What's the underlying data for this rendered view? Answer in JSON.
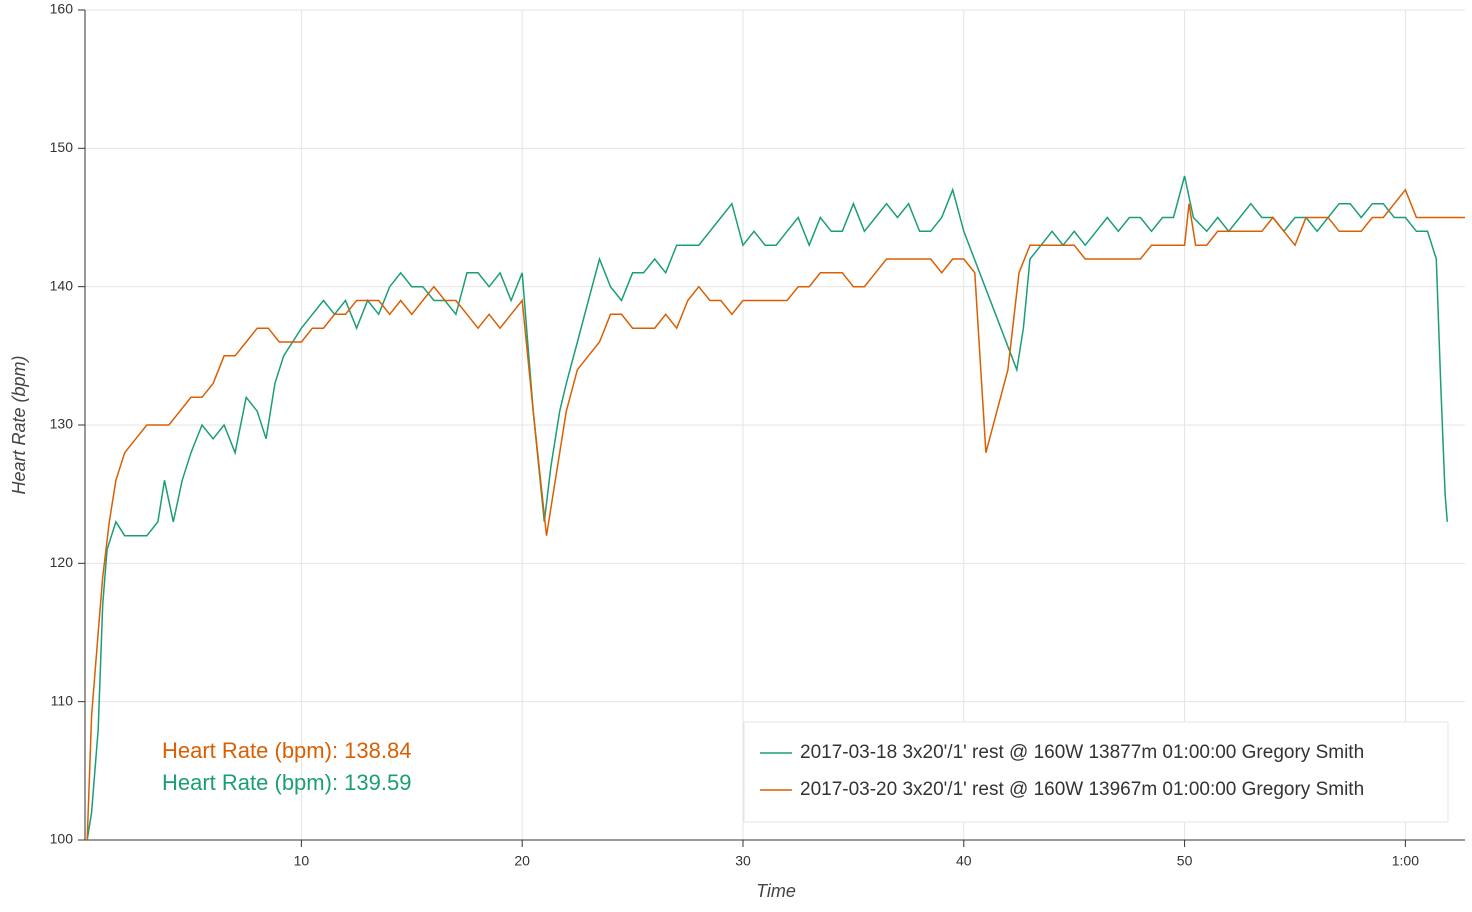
{
  "chart_data": {
    "type": "line",
    "xlabel": "Time",
    "ylabel": "Heart Rate (bpm)",
    "xlim": [
      0.2,
      62.7
    ],
    "xticks": [
      10,
      20,
      30,
      40,
      50,
      {
        "value": 60,
        "label": "1:00"
      }
    ],
    "ylim": [
      100,
      160
    ],
    "yticks": [
      100,
      110,
      120,
      130,
      140,
      150,
      160
    ],
    "grid": true,
    "legend": "bottom-right",
    "annotations": [
      {
        "text": "Heart Rate (bpm): 138.84",
        "color": "#d95f02"
      },
      {
        "text": "Heart Rate (bpm): 139.59",
        "color": "#1b9e77"
      }
    ],
    "series": [
      {
        "name": "2017-03-18 3x20'/1' rest @ 160W 13877m 01:00:00 Gregory Smith",
        "color": "#1b9e77",
        "x": [
          0.3,
          0.5,
          0.8,
          1.0,
          1.2,
          1.6,
          2.0,
          2.5,
          3.0,
          3.5,
          3.8,
          4.2,
          4.6,
          5.0,
          5.5,
          6.0,
          6.5,
          7.0,
          7.5,
          8.0,
          8.4,
          8.8,
          9.2,
          9.6,
          10.0,
          10.5,
          11.0,
          11.5,
          12.0,
          12.5,
          13.0,
          13.5,
          14.0,
          14.5,
          15.0,
          15.5,
          16.0,
          16.5,
          17.0,
          17.5,
          18.0,
          18.5,
          19.0,
          19.5,
          20.0,
          20.5,
          21.0,
          21.3,
          21.7,
          22.0,
          22.5,
          23.0,
          23.5,
          24.0,
          24.5,
          25.0,
          25.5,
          26.0,
          26.5,
          27.0,
          27.5,
          28.0,
          28.5,
          29.0,
          29.5,
          30.0,
          30.5,
          31.0,
          31.5,
          32.0,
          32.5,
          33.0,
          33.5,
          34.0,
          34.5,
          35.0,
          35.5,
          36.0,
          36.5,
          37.0,
          37.5,
          38.0,
          38.5,
          39.0,
          39.5,
          40.0,
          42.4,
          42.7,
          43.0,
          43.5,
          44.0,
          44.5,
          45.0,
          45.5,
          46.0,
          46.5,
          47.0,
          47.5,
          48.0,
          48.5,
          49.0,
          49.5,
          50.0,
          50.4,
          51.0,
          51.5,
          52.0,
          52.5,
          53.0,
          53.5,
          54.0,
          54.5,
          55.0,
          55.5,
          56.0,
          56.5,
          57.0,
          57.5,
          58.0,
          58.5,
          59.0,
          59.5,
          60.0,
          60.5,
          61.0,
          61.4,
          61.6,
          61.8,
          61.9
        ],
        "values": [
          100,
          102,
          108,
          117,
          121,
          123,
          122,
          122,
          122,
          123,
          126,
          123,
          126,
          128,
          130,
          129,
          130,
          128,
          132,
          131,
          129,
          133,
          135,
          136,
          137,
          138,
          139,
          138,
          139,
          137,
          139,
          138,
          140,
          141,
          140,
          140,
          139,
          139,
          138,
          141,
          141,
          140,
          141,
          139,
          141,
          131,
          123,
          127,
          131,
          133,
          136,
          139,
          142,
          140,
          139,
          141,
          141,
          142,
          141,
          143,
          143,
          143,
          144,
          145,
          146,
          143,
          144,
          143,
          143,
          144,
          145,
          143,
          145,
          144,
          144,
          146,
          144,
          145,
          146,
          145,
          146,
          144,
          144,
          145,
          147,
          144,
          134,
          137,
          142,
          143,
          144,
          143,
          144,
          143,
          144,
          145,
          144,
          145,
          145,
          144,
          145,
          145,
          148,
          145,
          144,
          145,
          144,
          145,
          146,
          145,
          145,
          144,
          145,
          145,
          144,
          145,
          146,
          146,
          145,
          146,
          146,
          145,
          145,
          144,
          144,
          142,
          133,
          125,
          123
        ]
      },
      {
        "name": "2017-03-20 3x20'/1' rest @ 160W 13967m 01:00:00 Gregory Smith",
        "color": "#d95f02",
        "x": [
          0.3,
          0.5,
          0.8,
          1.0,
          1.3,
          1.6,
          2.0,
          2.5,
          3.0,
          3.5,
          4.0,
          4.5,
          5.0,
          5.5,
          6.0,
          6.5,
          7.0,
          7.5,
          8.0,
          8.5,
          9.0,
          9.5,
          10.0,
          10.5,
          11.0,
          11.5,
          12.0,
          12.5,
          13.0,
          13.5,
          14.0,
          14.5,
          15.0,
          15.5,
          16.0,
          16.5,
          17.0,
          17.5,
          18.0,
          18.5,
          19.0,
          19.5,
          20.0,
          20.5,
          21.1,
          21.5,
          22.0,
          22.5,
          23.0,
          23.5,
          24.0,
          24.5,
          25.0,
          25.5,
          26.0,
          26.5,
          27.0,
          27.5,
          28.0,
          28.5,
          29.0,
          29.5,
          30.0,
          31.0,
          32.0,
          32.5,
          33.0,
          33.5,
          34.0,
          34.5,
          35.0,
          35.5,
          36.0,
          36.5,
          37.0,
          37.5,
          38.0,
          38.5,
          39.0,
          39.5,
          40.0,
          40.5,
          41.0,
          42.0,
          42.5,
          43.0,
          43.5,
          44.0,
          44.5,
          45.0,
          45.5,
          46.0,
          47.0,
          48.0,
          48.5,
          49.0,
          49.5,
          50.0,
          50.2,
          50.5,
          51.0,
          51.5,
          52.0,
          52.5,
          53.0,
          53.5,
          54.0,
          54.5,
          55.0,
          55.5,
          56.0,
          56.5,
          57.0,
          57.5,
          58.0,
          58.5,
          59.0,
          59.5,
          60.0,
          60.5,
          61.0,
          62.0,
          62.7
        ],
        "values": [
          100,
          109,
          115,
          119,
          123,
          126,
          128,
          129,
          130,
          130,
          130,
          131,
          132,
          132,
          133,
          135,
          135,
          136,
          137,
          137,
          136,
          136,
          136,
          137,
          137,
          138,
          138,
          139,
          139,
          139,
          138,
          139,
          138,
          139,
          140,
          139,
          139,
          138,
          137,
          138,
          137,
          138,
          139,
          131,
          122,
          126,
          131,
          134,
          135,
          136,
          138,
          138,
          137,
          137,
          137,
          138,
          137,
          139,
          140,
          139,
          139,
          138,
          139,
          139,
          139,
          140,
          140,
          141,
          141,
          141,
          140,
          140,
          141,
          142,
          142,
          142,
          142,
          142,
          141,
          142,
          142,
          141,
          128,
          134,
          141,
          143,
          143,
          143,
          143,
          143,
          142,
          142,
          142,
          142,
          143,
          143,
          143,
          143,
          146,
          143,
          143,
          144,
          144,
          144,
          144,
          144,
          145,
          144,
          143,
          145,
          145,
          145,
          144,
          144,
          144,
          145,
          145,
          146,
          147,
          145,
          145,
          145,
          145
        ]
      }
    ]
  }
}
